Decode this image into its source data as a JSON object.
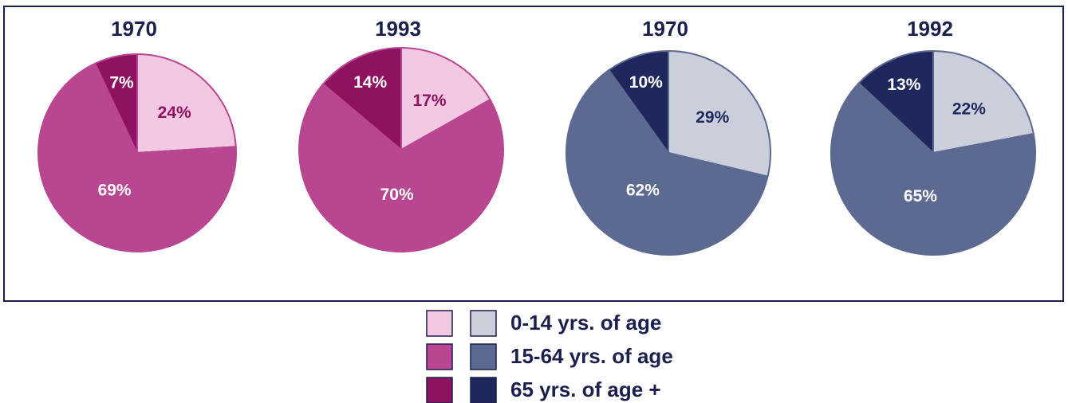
{
  "chart_data": [
    {
      "type": "pie",
      "title": "1970",
      "values": [
        24,
        69,
        7
      ],
      "value_labels": [
        "24%",
        "69%",
        "7%"
      ],
      "colors": [
        "#f3c8e2",
        "#b94690",
        "#8e1260"
      ]
    },
    {
      "type": "pie",
      "title": "1993",
      "values": [
        17,
        70,
        14
      ],
      "value_labels": [
        "17%",
        "70%",
        "14%"
      ],
      "colors": [
        "#f3c8e2",
        "#b94690",
        "#8e1260"
      ]
    },
    {
      "type": "pie",
      "title": "1970",
      "values": [
        29,
        62,
        10
      ],
      "value_labels": [
        "29%",
        "62%",
        "10%"
      ],
      "colors": [
        "#cbcfdb",
        "#5c6a91",
        "#1e285c"
      ]
    },
    {
      "type": "pie",
      "title": "1992",
      "values": [
        22,
        65,
        13
      ],
      "value_labels": [
        "22%",
        "65%",
        "13%"
      ],
      "colors": [
        "#cbcfdb",
        "#5c6a91",
        "#1e285c"
      ]
    }
  ],
  "legend": {
    "labels": [
      "0-14 yrs. of age",
      "15-64 yrs. of age",
      "65 yrs. of age +"
    ]
  }
}
